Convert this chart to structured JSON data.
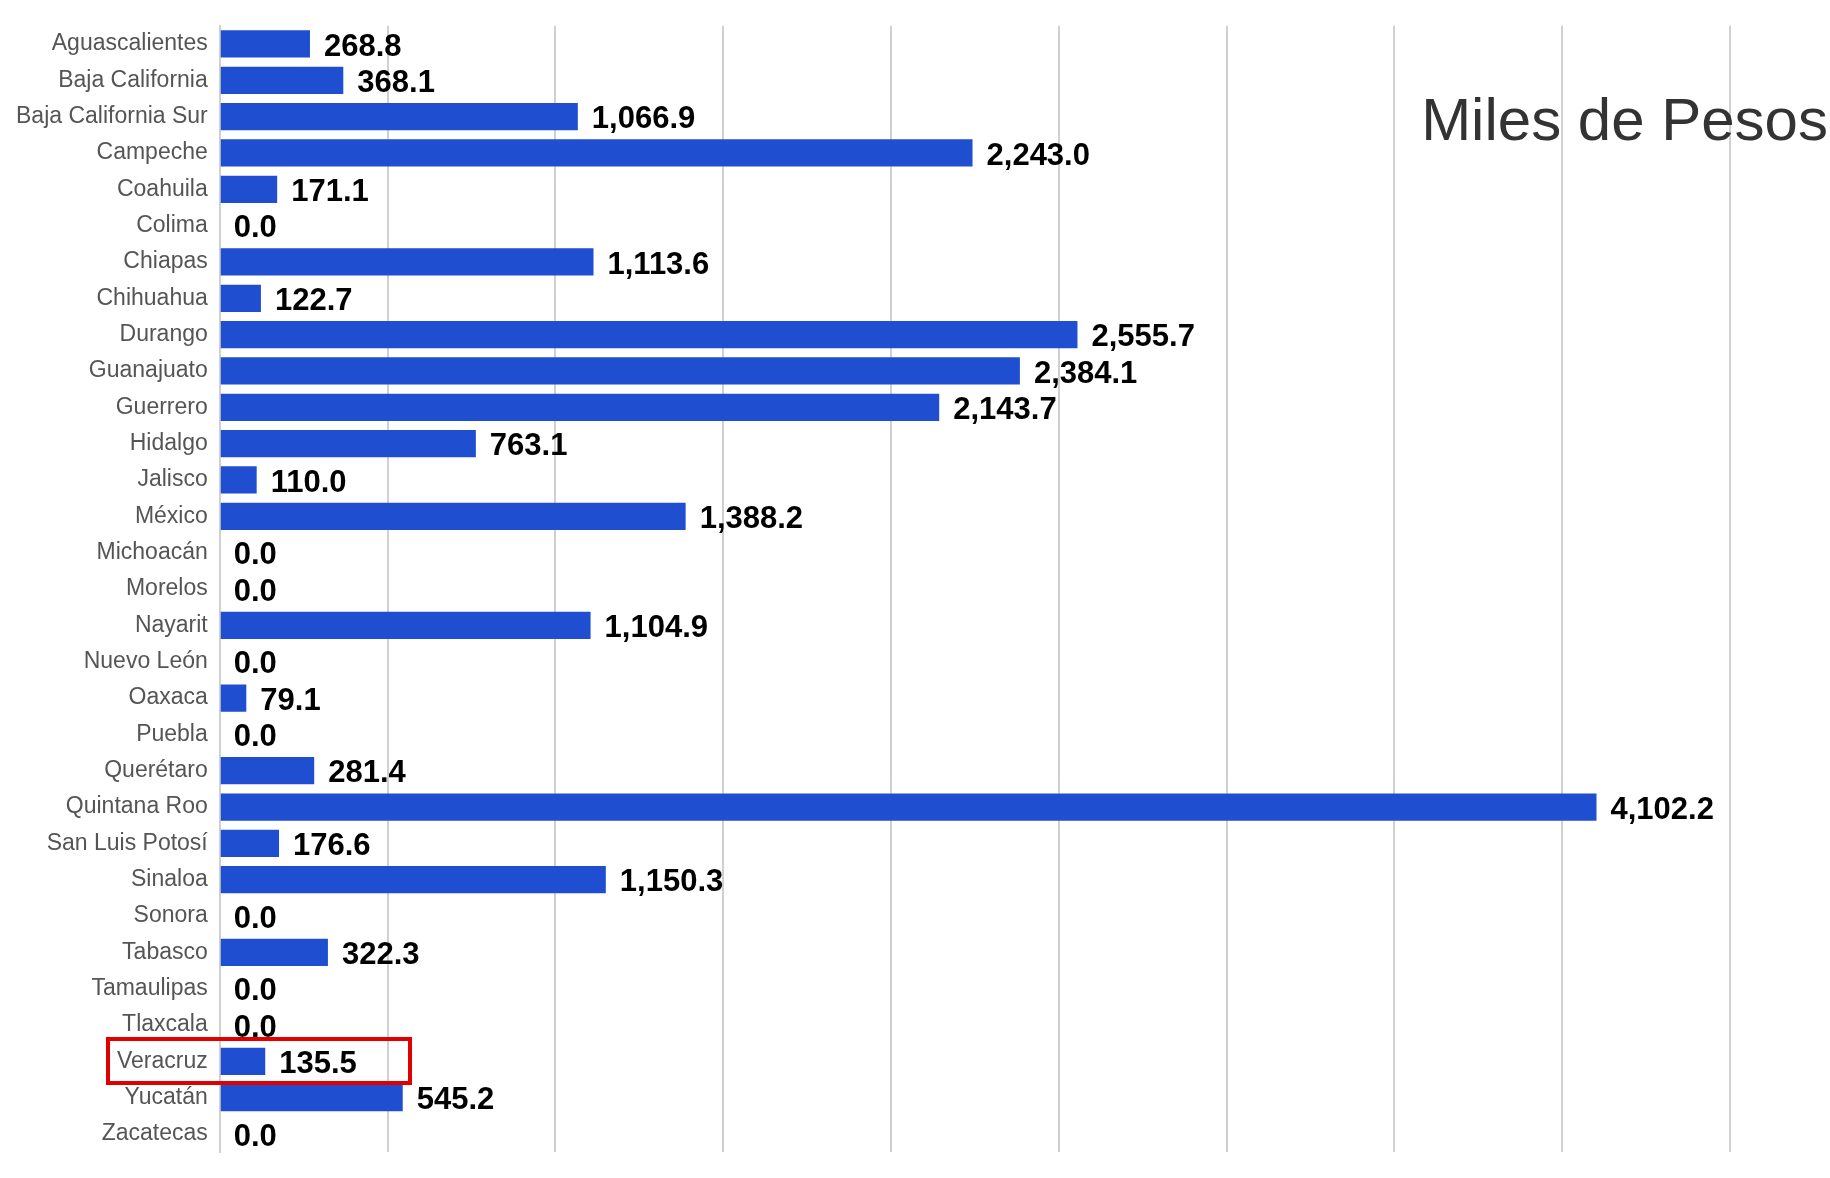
{
  "chart_data": {
    "type": "bar",
    "orientation": "horizontal",
    "categories": [
      "Aguascalientes",
      "Baja California",
      "Baja California Sur",
      "Campeche",
      "Coahuila",
      "Colima",
      "Chiapas",
      "Chihuahua",
      "Durango",
      "Guanajuato",
      "Guerrero",
      "Hidalgo",
      "Jalisco",
      "México",
      "Michoacán",
      "Morelos",
      "Nayarit",
      "Nuevo León",
      "Oaxaca",
      "Puebla",
      "Querétaro",
      "Quintana Roo",
      "San Luis Potosí",
      "Sinaloa",
      "Sonora",
      "Tabasco",
      "Tamaulipas",
      "Tlaxcala",
      "Veracruz",
      "Yucatán",
      "Zacatecas"
    ],
    "values": [
      268.8,
      368.1,
      1066.9,
      2243.0,
      171.1,
      0.0,
      1113.6,
      122.7,
      2555.7,
      2384.1,
      2143.7,
      763.1,
      110.0,
      1388.2,
      0.0,
      0.0,
      1104.9,
      0.0,
      79.1,
      0.0,
      281.4,
      4102.2,
      176.6,
      1150.3,
      0.0,
      322.3,
      0.0,
      0.0,
      135.5,
      545.2,
      0.0
    ],
    "value_labels": [
      "268.8",
      "368.1",
      "1,066.9",
      "2,243.0",
      "171.1",
      "0.0",
      "1,113.6",
      "122.7",
      "2,555.7",
      "2,384.1",
      "2,143.7",
      "763.1",
      "110.0",
      "1,388.2",
      "0.0",
      "0.0",
      "1,104.9",
      "0.0",
      "79.1",
      "0.0",
      "281.4",
      "4,102.2",
      "176.6",
      "1,150.3",
      "0.0",
      "322.3",
      "0.0",
      "0.0",
      "135.5",
      "545.2",
      "0.0"
    ],
    "color": "#1f4fd0",
    "xlim": [
      0,
      4500
    ],
    "xticks": [
      0,
      500,
      1000,
      1500,
      2000,
      2500,
      3000,
      3500,
      4000,
      4500
    ],
    "tick_labels": "y",
    "grid": "x",
    "legend": false,
    "annotations": [
      "Miles de Pesos"
    ]
  }
}
